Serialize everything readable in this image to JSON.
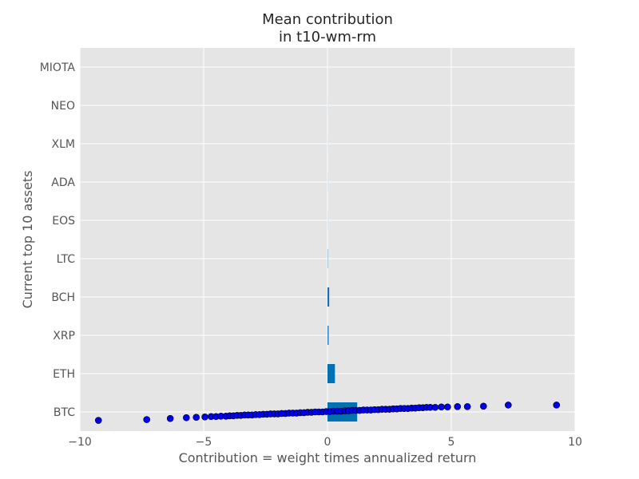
{
  "chart_data": {
    "type": "bar",
    "orientation": "horizontal",
    "title": "Mean contribution\n in t10-wm-rm",
    "xlabel": "Contribution = weight times annualized return",
    "ylabel": "Current top 10 assets",
    "xlim": [
      -10,
      10
    ],
    "xticks": [
      -10,
      -5,
      0,
      5,
      10
    ],
    "xtick_labels": [
      "−10",
      "−5",
      "0",
      "5",
      "10"
    ],
    "grid": true,
    "categories": [
      "BTC",
      "ETH",
      "XRP",
      "BCH",
      "LTC",
      "EOS",
      "ADA",
      "XLM",
      "NEO",
      "MIOTA"
    ],
    "values": [
      1.2,
      0.3,
      0.05,
      0.07,
      0.03,
      0.004,
      0.004,
      0.003,
      0.003,
      0.002
    ],
    "bar_colors": [
      "#0072b2",
      "#0072b2",
      "#3a86c4",
      "#1f6fb0",
      "#a8c8e0",
      "#dde8f2",
      "#dde8f2",
      "#e6eef6",
      "#e6eef6",
      "#eef3f8"
    ],
    "scatter": {
      "category": "BTC",
      "marker_color": "#0000ee",
      "x": [
        -9.25,
        -7.3,
        -6.35,
        -5.7,
        -5.3,
        -4.95,
        -4.7,
        -4.5,
        -4.3,
        -4.1,
        -3.95,
        -3.8,
        -3.65,
        -3.5,
        -3.35,
        -3.2,
        -3.05,
        -2.9,
        -2.75,
        -2.6,
        -2.45,
        -2.3,
        -2.15,
        -2.0,
        -1.85,
        -1.7,
        -1.55,
        -1.4,
        -1.25,
        -1.1,
        -0.95,
        -0.8,
        -0.65,
        -0.5,
        -0.35,
        -0.2,
        -0.05,
        0.1,
        0.25,
        0.4,
        0.55,
        0.7,
        0.85,
        1.0,
        1.15,
        1.3,
        1.45,
        1.6,
        1.75,
        1.9,
        2.05,
        2.2,
        2.35,
        2.5,
        2.65,
        2.8,
        2.95,
        3.1,
        3.25,
        3.4,
        3.55,
        3.7,
        3.85,
        4.0,
        4.15,
        4.35,
        4.6,
        4.85,
        5.25,
        5.65,
        6.3,
        7.3,
        9.25
      ],
      "y_offset": [
        -0.22,
        -0.2,
        -0.17,
        -0.15,
        -0.14,
        -0.13,
        -0.12,
        -0.12,
        -0.11,
        -0.11,
        -0.1,
        -0.1,
        -0.09,
        -0.09,
        -0.08,
        -0.08,
        -0.08,
        -0.07,
        -0.07,
        -0.06,
        -0.06,
        -0.05,
        -0.05,
        -0.05,
        -0.04,
        -0.04,
        -0.03,
        -0.03,
        -0.03,
        -0.02,
        -0.02,
        -0.01,
        -0.01,
        0.0,
        0.0,
        0.0,
        0.01,
        0.01,
        0.02,
        0.02,
        0.02,
        0.03,
        0.03,
        0.04,
        0.04,
        0.04,
        0.05,
        0.05,
        0.05,
        0.06,
        0.06,
        0.07,
        0.07,
        0.07,
        0.08,
        0.08,
        0.09,
        0.09,
        0.09,
        0.1,
        0.1,
        0.11,
        0.11,
        0.12,
        0.12,
        0.12,
        0.13,
        0.13,
        0.14,
        0.14,
        0.15,
        0.18,
        0.18
      ]
    }
  }
}
